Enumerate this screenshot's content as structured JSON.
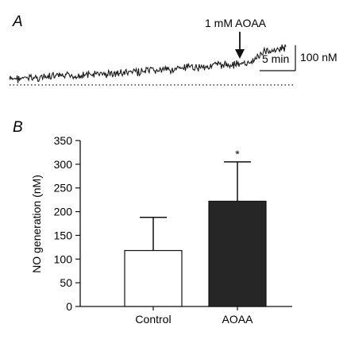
{
  "panel_a": {
    "label": "A",
    "annotation": "1 mM AOAA",
    "scalebar_time": "5 min",
    "scalebar_conc": "100 nM"
  },
  "panel_b": {
    "label": "B"
  },
  "chart_data": [
    {
      "type": "line",
      "panel": "A",
      "title": "",
      "description_units": {
        "x": "min",
        "y": "nM"
      },
      "x": [
        0,
        5,
        10,
        15,
        20,
        25,
        30,
        35,
        40,
        45,
        50,
        52,
        55,
        60
      ],
      "y": [
        0,
        6,
        11,
        16,
        20,
        26,
        32,
        39,
        47,
        55,
        62,
        58,
        108,
        125
      ],
      "baseline": 0,
      "events": [
        {
          "x": 51,
          "label": "1 mM AOAA"
        }
      ]
    },
    {
      "type": "bar",
      "panel": "B",
      "categories": [
        "Control",
        "AOAA"
      ],
      "values": [
        118,
        222
      ],
      "errors": [
        70,
        83
      ],
      "significance": [
        "",
        "*"
      ],
      "colors": [
        "#ffffff",
        "#262626"
      ],
      "xlabel": "",
      "ylabel": "NO generation (nM)",
      "ylim": [
        0,
        350
      ],
      "yticks": [
        0,
        50,
        100,
        150,
        200,
        250,
        300,
        350
      ],
      "grid": false
    }
  ]
}
